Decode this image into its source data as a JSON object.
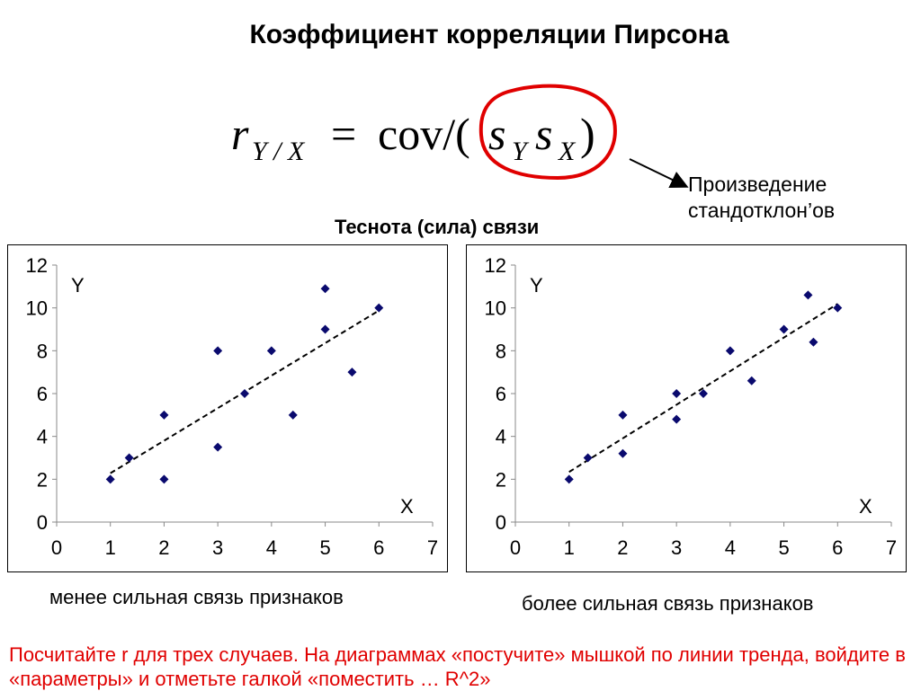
{
  "title": "Коэффициент корреляции Пирсона",
  "formula": {
    "r": "r",
    "r_sub": "Y / X",
    "equals": "=",
    "cov": "cov/(",
    "s": "s",
    "sub_y": "Y",
    "sub_x": "X",
    "close": ")"
  },
  "annotation": {
    "line1": "Произведение",
    "line2": "стандотклон’ов",
    "circle_color": "#e00000"
  },
  "subtitle": "Теснота (сила) связи",
  "captions": {
    "left": "менее сильная связь признаков",
    "right": "более сильная связь признаков"
  },
  "task_text": "Посчитайте r для трех случаев. На диаграммах «постучите» мышкой по линии тренда, войдите в «параметры» и отметьте галкой «поместить … R^2»",
  "colors": {
    "points": "#0a0a6e",
    "task": "#e00000"
  },
  "chart_data": [
    {
      "type": "scatter",
      "xlabel": "X",
      "ylabel": "Y",
      "xlim": [
        0,
        7
      ],
      "ylim": [
        0,
        12
      ],
      "xticks": [
        0,
        1,
        2,
        3,
        4,
        5,
        6,
        7
      ],
      "yticks": [
        0,
        2,
        4,
        6,
        8,
        10,
        12
      ],
      "grid": false,
      "trendline": "linear, dashed",
      "trend_range": [
        1,
        6
      ],
      "points": [
        {
          "x": 1,
          "y": 2
        },
        {
          "x": 1.35,
          "y": 3
        },
        {
          "x": 2,
          "y": 5
        },
        {
          "x": 2,
          "y": 2
        },
        {
          "x": 3,
          "y": 8
        },
        {
          "x": 3,
          "y": 3.5
        },
        {
          "x": 3.5,
          "y": 6
        },
        {
          "x": 4,
          "y": 8
        },
        {
          "x": 4.4,
          "y": 5
        },
        {
          "x": 5,
          "y": 10.9
        },
        {
          "x": 5,
          "y": 9
        },
        {
          "x": 5.5,
          "y": 7
        },
        {
          "x": 6,
          "y": 10
        }
      ]
    },
    {
      "type": "scatter",
      "xlabel": "X",
      "ylabel": "Y",
      "xlim": [
        0,
        7
      ],
      "ylim": [
        0,
        12
      ],
      "xticks": [
        0,
        1,
        2,
        3,
        4,
        5,
        6,
        7
      ],
      "yticks": [
        0,
        2,
        4,
        6,
        8,
        10,
        12
      ],
      "grid": false,
      "trendline": "linear, dashed",
      "trend_range": [
        1,
        6
      ],
      "points": [
        {
          "x": 1,
          "y": 2
        },
        {
          "x": 1.35,
          "y": 3
        },
        {
          "x": 2,
          "y": 5
        },
        {
          "x": 2,
          "y": 3.2
        },
        {
          "x": 3,
          "y": 6
        },
        {
          "x": 3,
          "y": 4.8
        },
        {
          "x": 3.5,
          "y": 6
        },
        {
          "x": 4,
          "y": 8
        },
        {
          "x": 4.4,
          "y": 6.6
        },
        {
          "x": 5,
          "y": 9
        },
        {
          "x": 5.45,
          "y": 10.6
        },
        {
          "x": 5.55,
          "y": 8.4
        },
        {
          "x": 6,
          "y": 10
        }
      ]
    }
  ]
}
